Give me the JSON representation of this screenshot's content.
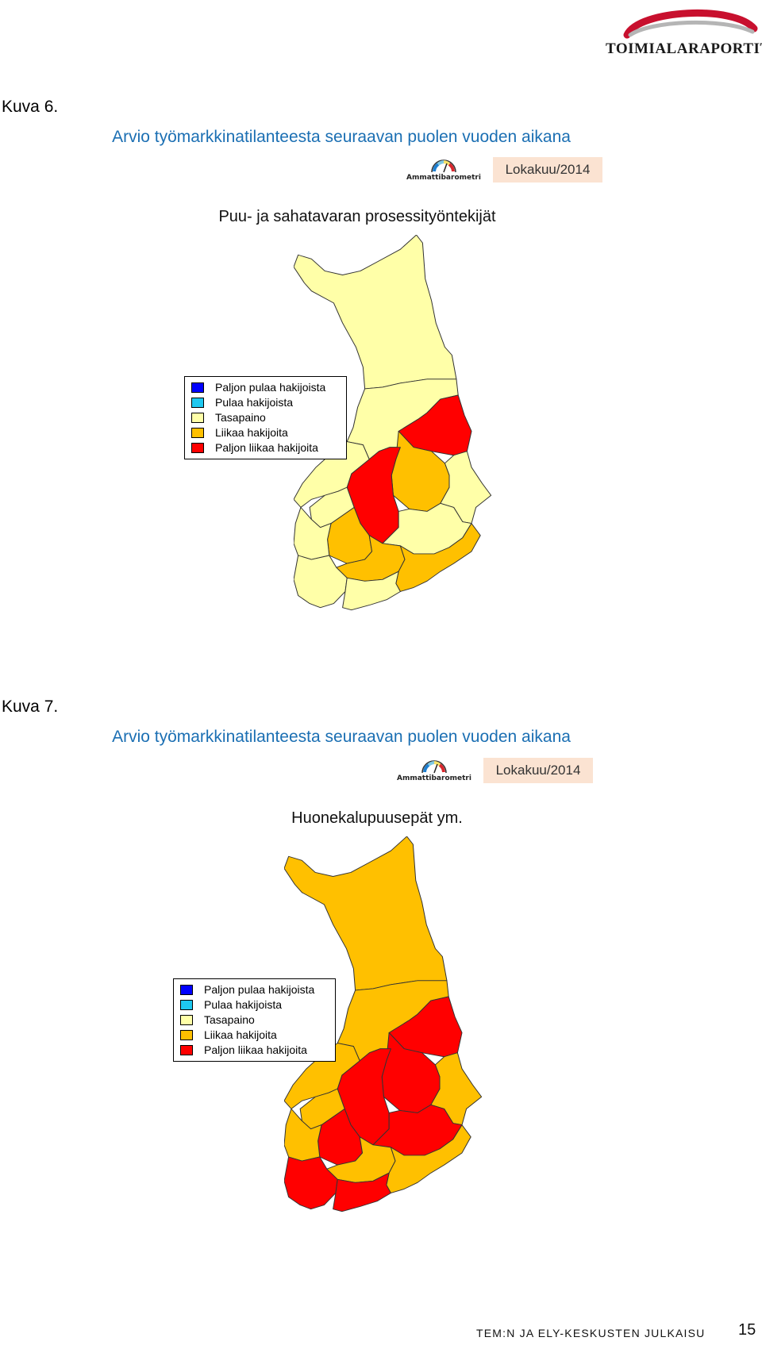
{
  "header": {
    "logo_text": "TOIMIALARAPORTIT"
  },
  "colors": {
    "heading": "#1b6fb3",
    "date_box_bg": "#fbe3d2",
    "paljon_pulaa": "#0000ff",
    "pulaa": "#1ec8f0",
    "tasapaino": "#ffffa8",
    "liikaa": "#ffc000",
    "paljon_liikaa": "#ff0000"
  },
  "figures": [
    {
      "label": "Kuva 6.",
      "heading": "Arvio työmarkkinatilanteesta seuraavan puolen vuoden aikana",
      "badge": "Ammattibarometri",
      "date": "Lokakuu/2014",
      "occupation": "Puu- ja sahatavaran prosessityöntekijät",
      "legend": [
        {
          "label": "Paljon pulaa hakijoista",
          "color": "#0000ff"
        },
        {
          "label": "Pulaa hakijoista",
          "color": "#1ec8f0"
        },
        {
          "label": "Tasapaino",
          "color": "#ffffa8"
        },
        {
          "label": "Liikaa hakijoita",
          "color": "#ffc000"
        },
        {
          "label": "Paljon liikaa hakijoita",
          "color": "#ff0000"
        }
      ],
      "regions": {
        "lappi": "tasapaino",
        "pohjois_pohjanmaa": "tasapaino",
        "kainuu": "paljon_liikaa",
        "pohjois_karjala": "tasapaino",
        "pohjois_savo": "liikaa",
        "keski_suomi": "paljon_liikaa",
        "etela_savo": "tasapaino",
        "pirkanmaa": "liikaa",
        "hame": "liikaa",
        "kaakkois_suomi": "liikaa",
        "pohjanmaa": "tasapaino",
        "etela_pohjanmaa": "tasapaino",
        "satakunta": "tasapaino",
        "varsinais_suomi": "tasapaino",
        "uusimaa": "tasapaino"
      }
    },
    {
      "label": "Kuva 7.",
      "heading": "Arvio työmarkkinatilanteesta seuraavan puolen vuoden aikana",
      "badge": "Ammattibarometri",
      "date": "Lokakuu/2014",
      "occupation": "Huonekalupuusepät ym.",
      "legend": [
        {
          "label": "Paljon pulaa hakijoista",
          "color": "#0000ff"
        },
        {
          "label": "Pulaa hakijoista",
          "color": "#1ec8f0"
        },
        {
          "label": "Tasapaino",
          "color": "#ffffa8"
        },
        {
          "label": "Liikaa hakijoita",
          "color": "#ffc000"
        },
        {
          "label": "Paljon liikaa hakijoita",
          "color": "#ff0000"
        }
      ],
      "regions": {
        "lappi": "liikaa",
        "pohjois_pohjanmaa": "liikaa",
        "kainuu": "paljon_liikaa",
        "pohjois_karjala": "liikaa",
        "pohjois_savo": "paljon_liikaa",
        "keski_suomi": "paljon_liikaa",
        "etela_savo": "paljon_liikaa",
        "pirkanmaa": "paljon_liikaa",
        "hame": "liikaa",
        "kaakkois_suomi": "liikaa",
        "pohjanmaa": "liikaa",
        "etela_pohjanmaa": "liikaa",
        "satakunta": "liikaa",
        "varsinais_suomi": "paljon_liikaa",
        "uusimaa": "paljon_liikaa"
      }
    }
  ],
  "footer": {
    "publisher": "TEM:N JA ELY-KESKUSTEN JULKAISU",
    "page_number": "15"
  }
}
